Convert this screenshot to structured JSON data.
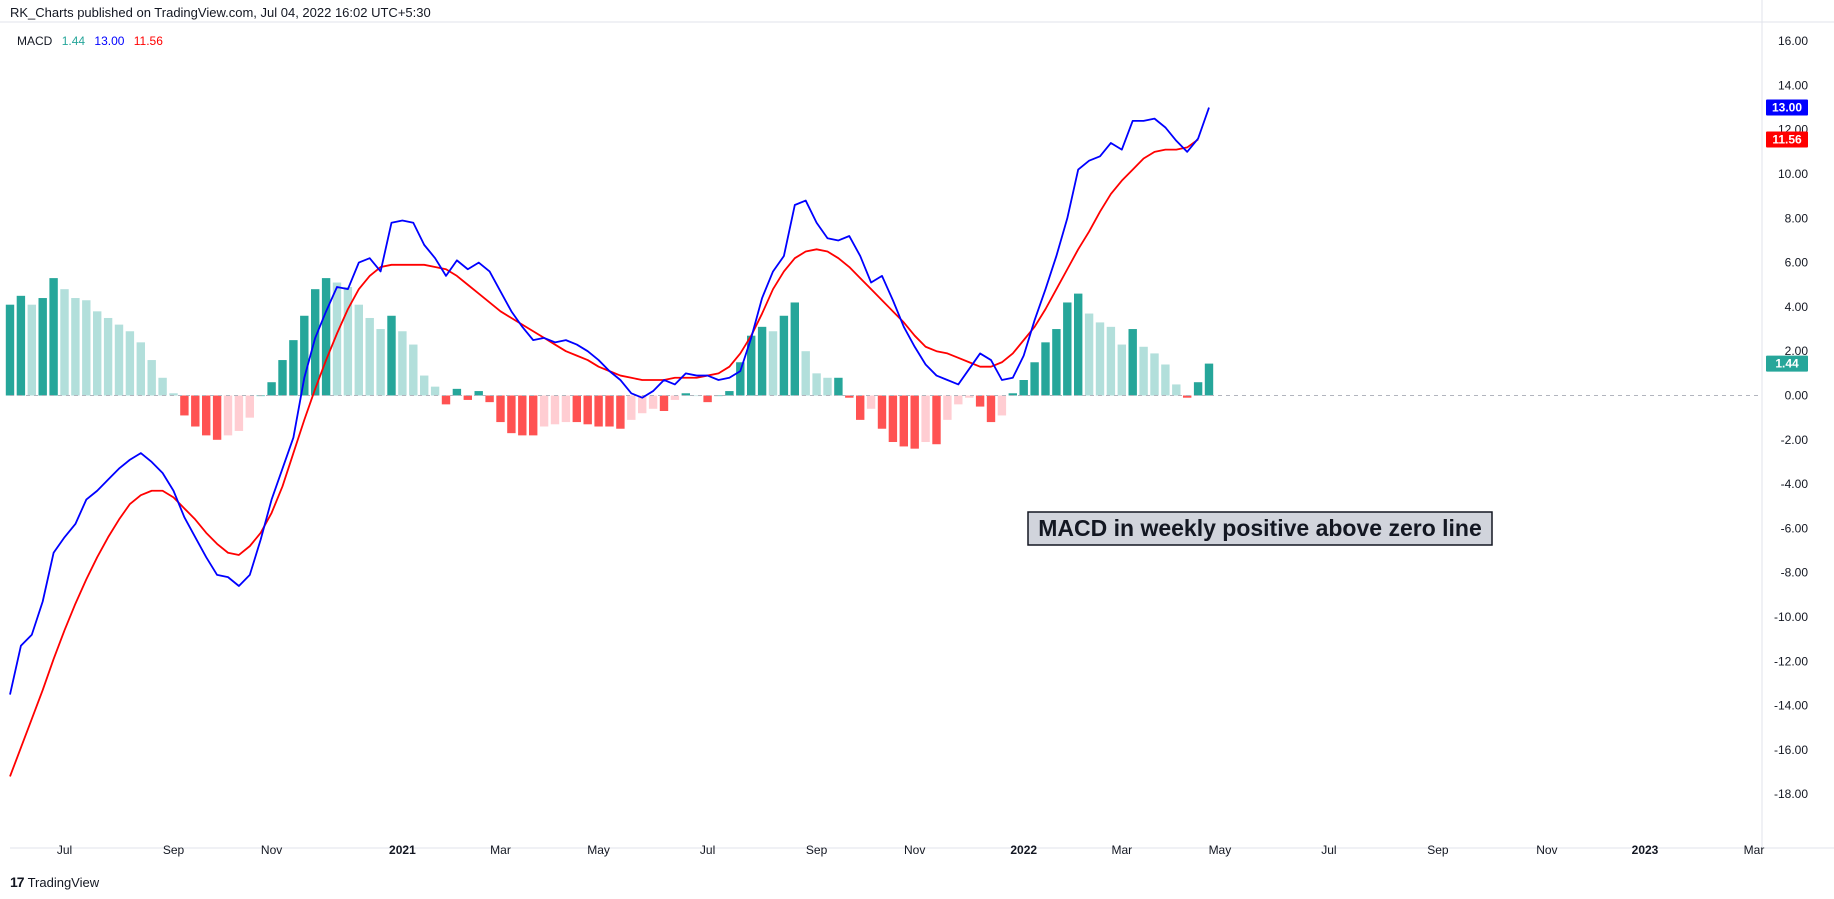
{
  "header": {
    "published_by": "RK_Charts published on TradingView.com, Jul 04, 2022 16:02 UTC+5:30"
  },
  "legend": {
    "name": "MACD",
    "histogram_value": "1.44",
    "macd_value": "13.00",
    "signal_value": "11.56"
  },
  "footer": {
    "logo_glyph": "17",
    "brand": "TradingView"
  },
  "annotation": {
    "text": "MACD in weekly positive above zero line"
  },
  "colors": {
    "macd_line": "#0000ff",
    "signal_line": "#ff0000",
    "hist_pos_strong": "#26a69a",
    "hist_pos_weak": "#b2dfdb",
    "hist_neg_strong": "#ff5252",
    "hist_neg_weak": "#ffcdd2",
    "legend_hist": "#26a69a"
  },
  "chart_data": {
    "type": "line",
    "title": "MACD",
    "xlabel": "",
    "ylabel": "",
    "grid": false,
    "ylim": [
      -19.5,
      16.5
    ],
    "y_ticks": [
      "16.00",
      "14.00",
      "12.00",
      "10.00",
      "8.00",
      "6.00",
      "4.00",
      "2.00",
      "0.00",
      "-2.00",
      "-4.00",
      "-6.00",
      "-8.00",
      "-10.00",
      "-12.00",
      "-14.00",
      "-16.00",
      "-18.00"
    ],
    "x_ticks": [
      {
        "label": "Jul",
        "week": 5,
        "major": false
      },
      {
        "label": "Sep",
        "week": 15,
        "major": false
      },
      {
        "label": "Nov",
        "week": 24,
        "major": false
      },
      {
        "label": "2021",
        "week": 36,
        "major": true
      },
      {
        "label": "Mar",
        "week": 45,
        "major": false
      },
      {
        "label": "May",
        "week": 54,
        "major": false
      },
      {
        "label": "Jul",
        "week": 64,
        "major": false
      },
      {
        "label": "Sep",
        "week": 74,
        "major": false
      },
      {
        "label": "Nov",
        "week": 83,
        "major": false
      },
      {
        "label": "2022",
        "week": 93,
        "major": true
      },
      {
        "label": "Mar",
        "week": 102,
        "major": false
      },
      {
        "label": "May",
        "week": 111,
        "major": false
      },
      {
        "label": "Jul",
        "week": 121,
        "major": false
      },
      {
        "label": "Sep",
        "week": 131,
        "major": false
      },
      {
        "label": "Nov",
        "week": 141,
        "major": false
      },
      {
        "label": "2023",
        "week": 150,
        "major": true
      },
      {
        "label": "Mar",
        "week": 160,
        "major": false
      }
    ],
    "x_range": [
      0,
      162
    ],
    "price_tags": [
      {
        "value": 13.0,
        "label": "13.00",
        "color": "#0000ff"
      },
      {
        "value": 11.56,
        "label": "11.56",
        "color": "#ff0000"
      },
      {
        "value": 1.44,
        "label": "1.44",
        "color": "#26a69a"
      }
    ],
    "series": [
      {
        "name": "MACD",
        "values": [
          -13.5,
          -11.3,
          -10.8,
          -9.3,
          -7.1,
          -6.4,
          -5.8,
          -4.7,
          -4.3,
          -3.8,
          -3.3,
          -2.9,
          -2.6,
          -3.0,
          -3.5,
          -4.3,
          -5.5,
          -6.4,
          -7.3,
          -8.1,
          -8.2,
          -8.6,
          -8.1,
          -6.5,
          -4.7,
          -3.3,
          -1.9,
          0.8,
          2.6,
          3.8,
          4.9,
          4.8,
          6.0,
          6.2,
          5.6,
          7.8,
          7.9,
          7.8,
          6.8,
          6.2,
          5.4,
          6.1,
          5.7,
          6.0,
          5.6,
          4.7,
          3.8,
          3.1,
          2.5,
          2.6,
          2.4,
          2.5,
          2.3,
          2.0,
          1.6,
          1.1,
          0.7,
          0.1,
          -0.1,
          0.2,
          0.7,
          0.5,
          1.0,
          0.9,
          0.9,
          0.7,
          0.8,
          1.1,
          2.6,
          4.4,
          5.6,
          6.3,
          8.6,
          8.8,
          7.8,
          7.1,
          7.0,
          7.2,
          6.3,
          5.1,
          5.4,
          4.3,
          3.1,
          2.2,
          1.4,
          0.9,
          0.7,
          0.5,
          1.2,
          1.9,
          1.6,
          0.7,
          0.8,
          1.8,
          3.4,
          4.8,
          6.3,
          8.0,
          10.2,
          10.6,
          10.8,
          11.4,
          11.1,
          12.4,
          12.4,
          12.5,
          12.1,
          11.5,
          11.0,
          11.6,
          13.0
        ],
        "color": "#0000ff"
      },
      {
        "name": "Signal",
        "values": [
          -17.2,
          -15.9,
          -14.6,
          -13.3,
          -11.9,
          -10.6,
          -9.4,
          -8.3,
          -7.3,
          -6.4,
          -5.6,
          -4.9,
          -4.5,
          -4.3,
          -4.3,
          -4.6,
          -5.1,
          -5.6,
          -6.2,
          -6.7,
          -7.1,
          -7.2,
          -6.8,
          -6.2,
          -5.3,
          -4.1,
          -2.6,
          -1.1,
          0.3,
          1.6,
          2.8,
          3.9,
          4.8,
          5.4,
          5.8,
          5.9,
          5.9,
          5.9,
          5.9,
          5.8,
          5.7,
          5.4,
          5.0,
          4.6,
          4.2,
          3.8,
          3.5,
          3.2,
          2.9,
          2.6,
          2.3,
          2.0,
          1.8,
          1.6,
          1.3,
          1.1,
          0.9,
          0.8,
          0.7,
          0.7,
          0.7,
          0.8,
          0.8,
          0.8,
          0.9,
          1.0,
          1.3,
          1.9,
          2.7,
          3.7,
          4.8,
          5.6,
          6.2,
          6.5,
          6.6,
          6.5,
          6.2,
          5.8,
          5.3,
          4.8,
          4.3,
          3.8,
          3.3,
          2.7,
          2.2,
          2.0,
          1.9,
          1.7,
          1.5,
          1.3,
          1.3,
          1.5,
          1.9,
          2.5,
          3.1,
          3.9,
          4.8,
          5.7,
          6.6,
          7.4,
          8.3,
          9.1,
          9.7,
          10.2,
          10.7,
          11.0,
          11.1,
          11.1,
          11.2,
          11.56
        ],
        "color": "#ff0000"
      },
      {
        "name": "Histogram",
        "values": [
          4.1,
          4.5,
          4.1,
          4.4,
          5.3,
          4.8,
          4.4,
          4.3,
          3.8,
          3.5,
          3.2,
          2.9,
          2.4,
          1.6,
          0.8,
          0.1,
          -0.9,
          -1.4,
          -1.8,
          -2.0,
          -1.8,
          -1.6,
          -1.0,
          0.0,
          0.6,
          1.6,
          2.5,
          3.6,
          4.8,
          5.3,
          5.1,
          4.9,
          4.1,
          3.5,
          3.0,
          3.6,
          2.9,
          2.3,
          0.9,
          0.4,
          -0.4,
          0.3,
          -0.2,
          0.2,
          -0.3,
          -1.2,
          -1.7,
          -1.8,
          -1.8,
          -1.4,
          -1.3,
          -1.2,
          -1.2,
          -1.3,
          -1.4,
          -1.4,
          -1.5,
          -1.1,
          -0.8,
          -0.6,
          -0.7,
          -0.2,
          0.1,
          0.0,
          -0.3,
          0.0,
          0.2,
          1.5,
          2.7,
          3.1,
          2.9,
          3.6,
          4.2,
          2.0,
          1.0,
          0.8,
          0.8,
          -0.1,
          -1.1,
          -0.6,
          -1.5,
          -2.1,
          -2.3,
          -2.4,
          -2.1,
          -2.2,
          -1.1,
          -0.4,
          -0.1,
          -0.5,
          -1.2,
          -0.9,
          0.1,
          0.7,
          1.5,
          2.4,
          3.0,
          4.2,
          4.6,
          3.7,
          3.3,
          3.1,
          2.3,
          3.0,
          2.2,
          1.9,
          1.4,
          0.5,
          -0.1,
          0.6,
          1.44
        ],
        "color": "#26a69a"
      }
    ]
  }
}
